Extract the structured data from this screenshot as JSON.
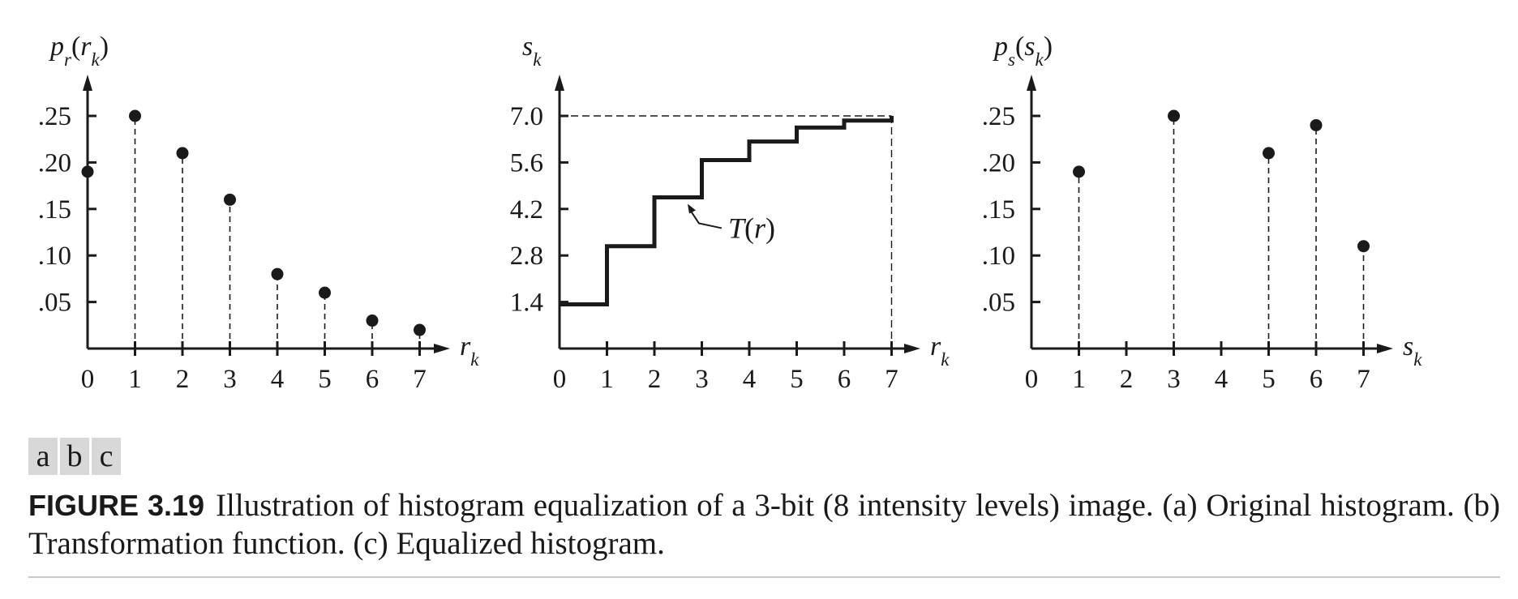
{
  "chart_data": [
    {
      "panel": "a",
      "type": "scatter",
      "style": "stem",
      "ylabel": "p_r(r_k)",
      "xlabel": "r_k",
      "x": [
        0,
        1,
        2,
        3,
        4,
        5,
        6,
        7
      ],
      "y": [
        0.19,
        0.25,
        0.21,
        0.16,
        0.08,
        0.06,
        0.03,
        0.02
      ],
      "xticks": [
        "0",
        "1",
        "2",
        "3",
        "4",
        "5",
        "6",
        "7"
      ],
      "yticks": [
        0.05,
        0.1,
        0.15,
        0.2,
        0.25
      ],
      "ytick_labels": [
        ".05",
        ".10",
        ".15",
        ".20",
        ".25"
      ],
      "xlim": [
        0,
        7
      ],
      "ylim": [
        0,
        0.25
      ],
      "grid": false
    },
    {
      "panel": "b",
      "type": "line",
      "style": "step",
      "ylabel": "s_k",
      "xlabel": "r_k",
      "x": [
        0,
        1,
        2,
        3,
        4,
        5,
        6,
        7
      ],
      "y": [
        1.33,
        3.08,
        4.55,
        5.67,
        6.23,
        6.65,
        6.86,
        7.0
      ],
      "xticks": [
        "0",
        "1",
        "2",
        "3",
        "4",
        "5",
        "6",
        "7"
      ],
      "yticks": [
        1.4,
        2.8,
        4.2,
        5.6,
        7.0
      ],
      "ytick_labels": [
        "1.4",
        "2.8",
        "4.2",
        "5.6",
        "7.0"
      ],
      "xlim": [
        0,
        7
      ],
      "ylim": [
        0,
        7.0
      ],
      "annotation": "T(r)",
      "reference_line_y": 7.0,
      "grid": false
    },
    {
      "panel": "c",
      "type": "scatter",
      "style": "stem",
      "ylabel": "p_s(s_k)",
      "xlabel": "s_k",
      "x": [
        1,
        3,
        5,
        6,
        7
      ],
      "y": [
        0.19,
        0.25,
        0.21,
        0.24,
        0.11
      ],
      "xticks": [
        "0",
        "1",
        "2",
        "3",
        "4",
        "5",
        "6",
        "7"
      ],
      "yticks": [
        0.05,
        0.1,
        0.15,
        0.2,
        0.25
      ],
      "ytick_labels": [
        ".05",
        ".10",
        ".15",
        ".20",
        ".25"
      ],
      "xlim": [
        0,
        7
      ],
      "ylim": [
        0,
        0.25
      ],
      "grid": false
    }
  ],
  "panel_labels": [
    "a",
    "b",
    "c"
  ],
  "caption": {
    "figure_number": "FIGURE 3.19",
    "text": "Illustration of histogram equalization of a 3-bit (8 intensity levels) image. (a) Original histogram. (b) Transformation function. (c) Equalized histogram."
  },
  "colors": {
    "ink": "#1a1a1a",
    "panel_label_bg": "#d8d8d8",
    "rule": "#c8c8c8"
  }
}
